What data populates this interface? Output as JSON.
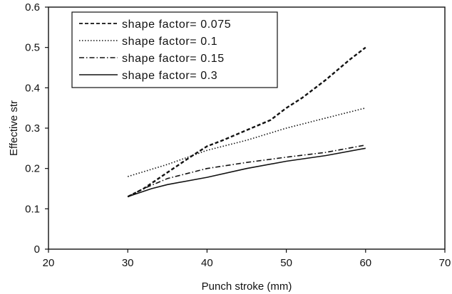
{
  "chart_data": {
    "type": "line",
    "xlabel": "Punch stroke (mm)",
    "ylabel": "Effective str",
    "xlim": [
      20,
      70
    ],
    "ylim": [
      0,
      0.6
    ],
    "x_ticks": [
      "20",
      "30",
      "40",
      "50",
      "60",
      "70"
    ],
    "y_ticks": [
      "0",
      "0.1",
      "0.2",
      "0.3",
      "0.4",
      "0.5",
      "0.6"
    ],
    "grid": false,
    "legend_position": "top-left",
    "series": [
      {
        "name": "shape factor= 0.075",
        "dash": "dashed",
        "points": [
          [
            30,
            0.13
          ],
          [
            32,
            0.15
          ],
          [
            35,
            0.19
          ],
          [
            38,
            0.23
          ],
          [
            40,
            0.255
          ],
          [
            42,
            0.27
          ],
          [
            45,
            0.295
          ],
          [
            48,
            0.32
          ],
          [
            50,
            0.35
          ],
          [
            52,
            0.375
          ],
          [
            55,
            0.42
          ],
          [
            58,
            0.47
          ],
          [
            60,
            0.5
          ]
        ]
      },
      {
        "name": "shape factor= 0.1",
        "dash": "dotted",
        "points": [
          [
            30,
            0.18
          ],
          [
            35,
            0.21
          ],
          [
            40,
            0.245
          ],
          [
            45,
            0.27
          ],
          [
            50,
            0.3
          ],
          [
            55,
            0.325
          ],
          [
            60,
            0.35
          ]
        ]
      },
      {
        "name": "shape factor= 0.15",
        "dash": "dashdot",
        "points": [
          [
            30,
            0.13
          ],
          [
            32,
            0.15
          ],
          [
            35,
            0.175
          ],
          [
            38,
            0.19
          ],
          [
            40,
            0.2
          ],
          [
            45,
            0.215
          ],
          [
            50,
            0.228
          ],
          [
            55,
            0.24
          ],
          [
            60,
            0.258
          ]
        ]
      },
      {
        "name": "shape factor= 0.3",
        "dash": "solid",
        "points": [
          [
            30,
            0.13
          ],
          [
            33,
            0.15
          ],
          [
            35,
            0.16
          ],
          [
            40,
            0.178
          ],
          [
            45,
            0.2
          ],
          [
            50,
            0.218
          ],
          [
            55,
            0.232
          ],
          [
            60,
            0.25
          ]
        ]
      }
    ]
  }
}
